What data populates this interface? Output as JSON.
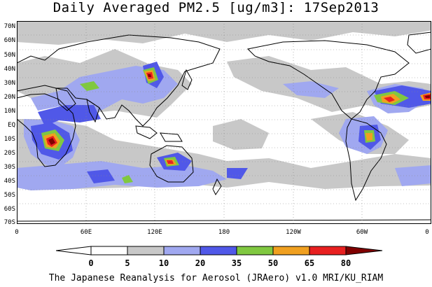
{
  "title": "Daily Averaged PM2.5 [ug/m3]: 17Sep2013",
  "footer": "The Japanese Reanalysis for Aerosol (JRAero) v1.0 MRI/KU_RIAM",
  "lat_labels": [
    "70N",
    "60N",
    "50N",
    "40N",
    "30N",
    "20N",
    "10N",
    "EQ",
    "10S",
    "20S",
    "30S",
    "40S",
    "50S",
    "60S",
    "70S"
  ],
  "lon_labels": [
    "0",
    "60E",
    "120E",
    "180",
    "120W",
    "60W",
    "0"
  ],
  "colorbar": {
    "levels": [
      "0",
      "5",
      "10",
      "20",
      "35",
      "50",
      "65",
      "80"
    ],
    "colors": [
      "#ffffff",
      "#c8c8c8",
      "#a0a8f0",
      "#5058e8",
      "#80c840",
      "#f0a020",
      "#e82020",
      "#800000"
    ]
  },
  "colors": {
    "land_outline": "#000000",
    "grid": "#888888"
  }
}
